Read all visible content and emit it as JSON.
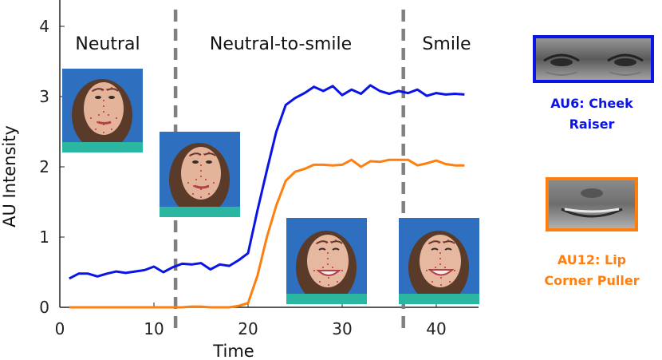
{
  "chart_data": {
    "type": "line",
    "xlabel": "Time",
    "ylabel": "AU Intensity",
    "xlim": [
      0,
      45
    ],
    "ylim": [
      0,
      4.4
    ],
    "xticks": [
      0,
      10,
      20,
      30,
      40
    ],
    "yticks": [
      0,
      1,
      2,
      3,
      4
    ],
    "phase_boundaries": [
      12.3,
      36.5
    ],
    "phases": [
      "Neutral",
      "Neutral-to-smile",
      "Smile"
    ],
    "series": [
      {
        "name": "AU6: Cheek Raiser",
        "color": "#0a14e6",
        "x": [
          1,
          2,
          3,
          4,
          5,
          6,
          7,
          8,
          9,
          10,
          11,
          12,
          13,
          14,
          15,
          16,
          17,
          18,
          19,
          20,
          21,
          22,
          23,
          24,
          25,
          26,
          27,
          28,
          29,
          30,
          31,
          32,
          33,
          34,
          35,
          36,
          37,
          38,
          39,
          40,
          41,
          42,
          43
        ],
        "values": [
          0.41,
          0.48,
          0.48,
          0.44,
          0.48,
          0.51,
          0.49,
          0.51,
          0.53,
          0.58,
          0.5,
          0.57,
          0.62,
          0.61,
          0.63,
          0.54,
          0.61,
          0.59,
          0.67,
          0.77,
          1.38,
          1.95,
          2.5,
          2.88,
          2.98,
          3.05,
          3.14,
          3.08,
          3.15,
          3.02,
          3.1,
          3.04,
          3.16,
          3.08,
          3.04,
          3.08,
          3.05,
          3.1,
          3.01,
          3.05,
          3.03,
          3.04,
          3.03
        ]
      },
      {
        "name": "AU12: Lip Corner Puller",
        "color": "#ff7f0e",
        "x": [
          1,
          2,
          3,
          4,
          5,
          6,
          7,
          8,
          9,
          10,
          11,
          12,
          13,
          14,
          15,
          16,
          17,
          18,
          19,
          20,
          21,
          22,
          23,
          24,
          25,
          26,
          27,
          28,
          29,
          30,
          31,
          32,
          33,
          34,
          35,
          36,
          37,
          38,
          39,
          40,
          41,
          42,
          43
        ],
        "values": [
          0,
          0,
          0,
          0,
          0,
          0,
          0,
          0,
          0,
          0,
          0,
          0,
          0,
          0.01,
          0.01,
          0,
          0,
          0,
          0.02,
          0.06,
          0.45,
          1.0,
          1.45,
          1.8,
          1.93,
          1.97,
          2.03,
          2.03,
          2.02,
          2.03,
          2.1,
          2.0,
          2.08,
          2.07,
          2.1,
          2.1,
          2.1,
          2.02,
          2.05,
          2.09,
          2.04,
          2.02,
          2.02
        ]
      }
    ]
  },
  "legend": {
    "au6_label_line1": "AU6: Cheek",
    "au6_label_line2": "Raiser",
    "au12_label_line1": "AU12: Lip",
    "au12_label_line2": "Corner Puller"
  },
  "colors": {
    "au6": "#0a14e6",
    "au12": "#ff7f0e",
    "divider": "#808080"
  }
}
